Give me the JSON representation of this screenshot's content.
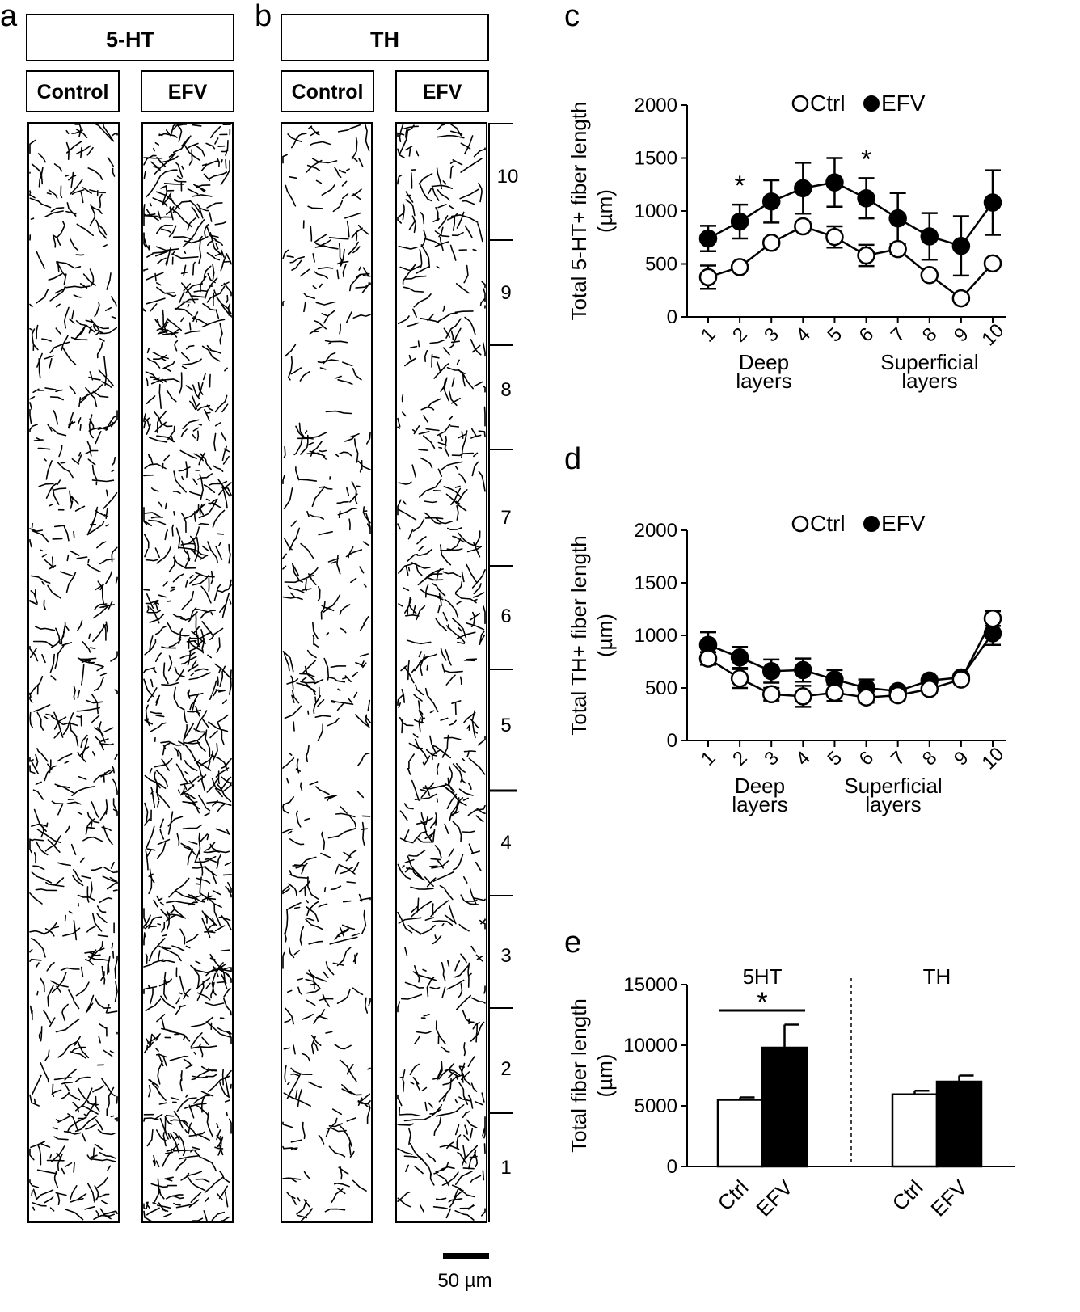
{
  "panels": {
    "a": {
      "letter": "a",
      "title": "5-HT",
      "columns": [
        "Control",
        "EFV"
      ],
      "fiber_density": {
        "Control": 0.75,
        "EFV": 1.15
      }
    },
    "b": {
      "letter": "b",
      "title": "TH",
      "columns": [
        "Control",
        "EFV"
      ],
      "fiber_density": {
        "Control": 0.55,
        "EFV": 0.75
      }
    },
    "layer_labels": [
      "10",
      "9",
      "8",
      "7",
      "6",
      "5",
      "4",
      "3",
      "2",
      "1"
    ],
    "scale_bar": "50 µm"
  },
  "chart_data": [
    {
      "id": "c",
      "panel_letter": "c",
      "type": "line",
      "ylabel_lines": [
        "Total 5-HT+ fiber length",
        "(µm)"
      ],
      "x": [
        "1",
        "2",
        "3",
        "4",
        "5",
        "6",
        "7",
        "8",
        "9",
        "10"
      ],
      "ylim": [
        0,
        2000
      ],
      "yticks": [
        "0",
        "500",
        "1000",
        "1500",
        "2000"
      ],
      "legend": [
        "Ctrl",
        "EFV"
      ],
      "group_labels": [
        [
          "Deep",
          "layers"
        ],
        [
          "Superficial",
          "layers"
        ]
      ],
      "series": [
        {
          "name": "Ctrl",
          "marker": "open-circle",
          "values": [
            375,
            470,
            700,
            855,
            755,
            580,
            640,
            395,
            175,
            505
          ],
          "errors": [
            110,
            30,
            40,
            40,
            100,
            100,
            50,
            30,
            20,
            30
          ]
        },
        {
          "name": "EFV",
          "marker": "filled-circle",
          "values": [
            740,
            900,
            1090,
            1215,
            1270,
            1120,
            930,
            760,
            670,
            1080
          ],
          "errors": [
            120,
            160,
            200,
            240,
            230,
            190,
            240,
            220,
            280,
            305
          ]
        }
      ],
      "significance": [
        {
          "x": "2",
          "label": "*"
        },
        {
          "x": "6",
          "label": "*"
        }
      ]
    },
    {
      "id": "d",
      "panel_letter": "d",
      "type": "line",
      "ylabel_lines": [
        "Total TH+ fiber length",
        "(µm)"
      ],
      "x": [
        "1",
        "2",
        "3",
        "4",
        "5",
        "6",
        "7",
        "8",
        "9",
        "10"
      ],
      "ylim": [
        0,
        2000
      ],
      "yticks": [
        "0",
        "500",
        "1000",
        "1500",
        "2000"
      ],
      "legend": [
        "Ctrl",
        "EFV"
      ],
      "group_labels": [
        [
          "Deep",
          "layers"
        ],
        [
          "Superficial",
          "layers"
        ]
      ],
      "series": [
        {
          "name": "Ctrl",
          "marker": "open-circle",
          "values": [
            780,
            590,
            440,
            420,
            455,
            410,
            430,
            490,
            580,
            1160
          ],
          "errors": [
            60,
            90,
            60,
            100,
            80,
            50,
            40,
            40,
            30,
            70
          ]
        },
        {
          "name": "EFV",
          "marker": "filled-circle",
          "values": [
            910,
            790,
            660,
            670,
            580,
            500,
            470,
            570,
            600,
            1020
          ],
          "errors": [
            120,
            100,
            110,
            110,
            90,
            80,
            30,
            40,
            30,
            110
          ]
        }
      ]
    },
    {
      "id": "e",
      "panel_letter": "e",
      "type": "bar",
      "ylabel_lines": [
        "Total fiber length",
        "(µm)"
      ],
      "ylim": [
        0,
        15000
      ],
      "yticks": [
        "0",
        "5000",
        "10000",
        "15000"
      ],
      "groups": [
        {
          "label": "5HT",
          "categories": [
            "Ctrl",
            "EFV"
          ],
          "values": [
            5500,
            9800
          ],
          "errors": [
            200,
            1900
          ],
          "significance": "*"
        },
        {
          "label": "TH",
          "categories": [
            "Ctrl",
            "EFV"
          ],
          "values": [
            5950,
            7000
          ],
          "errors": [
            300,
            500
          ]
        }
      ],
      "bar_colors": {
        "Ctrl": "#ffffff",
        "EFV": "#000000"
      }
    }
  ]
}
